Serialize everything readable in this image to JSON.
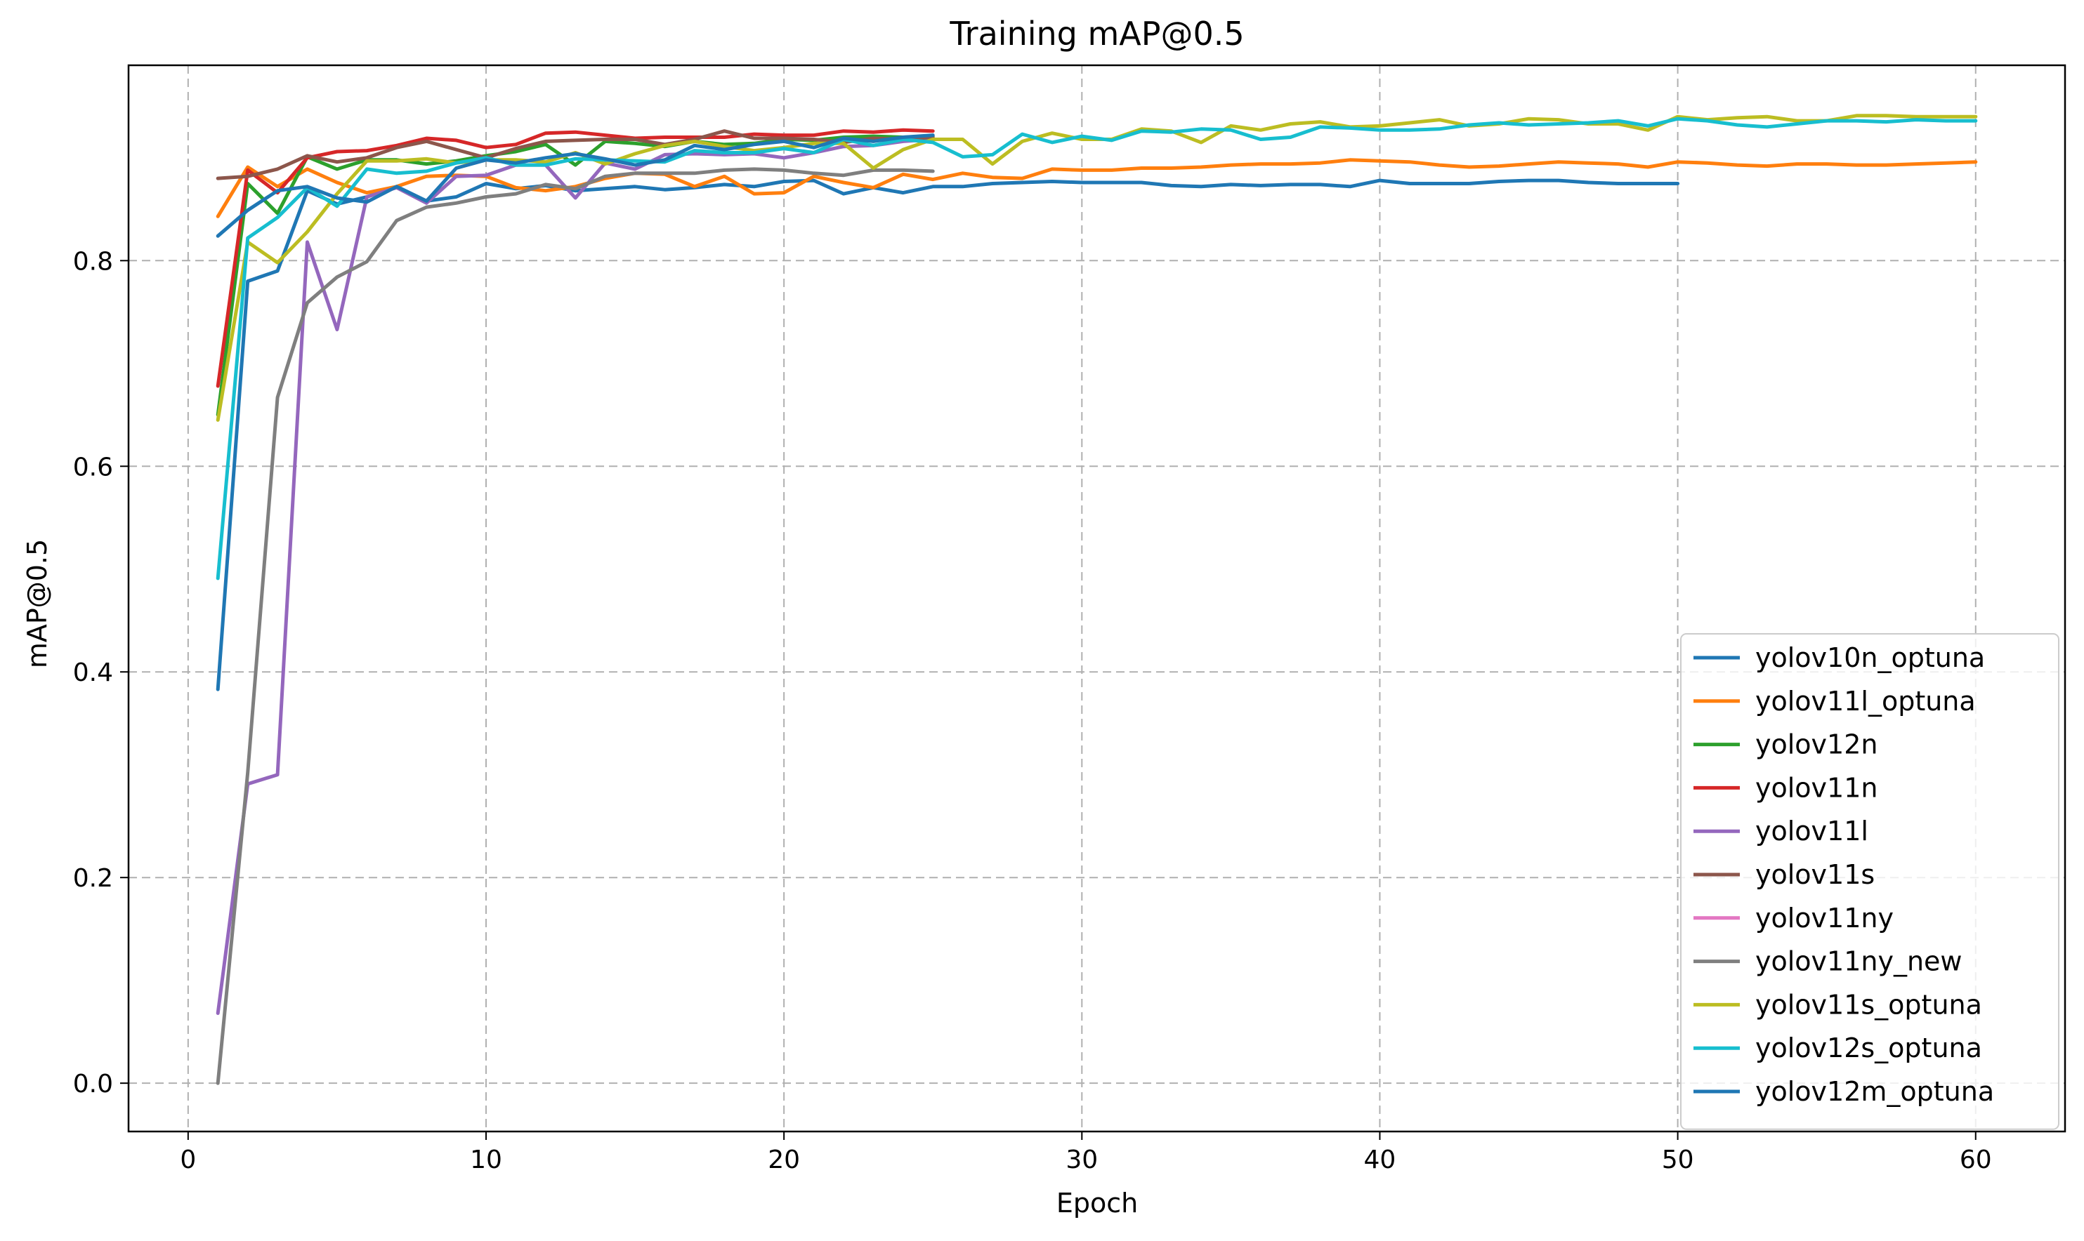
{
  "chart_data": {
    "type": "line",
    "title": "Training mAP@0.5",
    "xlabel": "Epoch",
    "ylabel": "mAP@0.5",
    "xlim": [
      -2,
      63
    ],
    "ylim": [
      -0.047,
      0.99
    ],
    "xticks": [
      0,
      10,
      20,
      30,
      40,
      50,
      60
    ],
    "yticks": [
      0.0,
      0.2,
      0.4,
      0.6,
      0.8
    ],
    "ytick_labels": [
      "0.0",
      "0.2",
      "0.4",
      "0.6",
      "0.8"
    ],
    "grid": true,
    "legend_position": "lower-right",
    "series": [
      {
        "name": "yolov10n_optuna",
        "color": "#1f77b4",
        "x_start": 1,
        "values": [
          0.383,
          0.78,
          0.79,
          0.868,
          0.855,
          0.862,
          0.872,
          0.858,
          0.862,
          0.875,
          0.87,
          0.873,
          0.868,
          0.87,
          0.872,
          0.869,
          0.871,
          0.874,
          0.872,
          0.877,
          0.878,
          0.865,
          0.871,
          0.866,
          0.872,
          0.872,
          0.875,
          0.876,
          0.877,
          0.876,
          0.876,
          0.876,
          0.873,
          0.872,
          0.874,
          0.873,
          0.874,
          0.874,
          0.872,
          0.878,
          0.875,
          0.875,
          0.875,
          0.877,
          0.878,
          0.878,
          0.876,
          0.875,
          0.875,
          0.875
        ]
      },
      {
        "name": "yolov11l_optuna",
        "color": "#ff7f0e",
        "x_start": 1,
        "values": [
          0.843,
          0.891,
          0.872,
          0.889,
          0.876,
          0.866,
          0.872,
          0.882,
          0.883,
          0.882,
          0.871,
          0.868,
          0.872,
          0.88,
          0.885,
          0.884,
          0.872,
          0.882,
          0.865,
          0.866,
          0.882,
          0.876,
          0.871,
          0.884,
          0.879,
          0.885,
          0.881,
          0.88,
          0.889,
          0.888,
          0.888,
          0.89,
          0.89,
          0.891,
          0.893,
          0.894,
          0.894,
          0.895,
          0.898,
          0.897,
          0.896,
          0.893,
          0.891,
          0.892,
          0.894,
          0.896,
          0.895,
          0.894,
          0.891,
          0.896,
          0.895,
          0.893,
          0.892,
          0.894,
          0.894,
          0.893,
          0.893,
          0.894,
          0.895,
          0.896
        ]
      },
      {
        "name": "yolov12n",
        "color": "#2ca02c",
        "x_start": 1,
        "values": [
          0.65,
          0.875,
          0.846,
          0.901,
          0.889,
          0.898,
          0.898,
          0.894,
          0.897,
          0.902,
          0.906,
          0.913,
          0.893,
          0.916,
          0.914,
          0.911,
          0.916,
          0.913,
          0.914,
          0.918,
          0.917,
          0.92,
          0.921,
          0.92,
          0.921
        ]
      },
      {
        "name": "yolov11n",
        "color": "#d62728",
        "x_start": 1,
        "values": [
          0.678,
          0.888,
          0.866,
          0.9,
          0.906,
          0.907,
          0.912,
          0.919,
          0.917,
          0.91,
          0.913,
          0.924,
          0.925,
          0.922,
          0.919,
          0.92,
          0.92,
          0.92,
          0.923,
          0.922,
          0.922,
          0.926,
          0.925,
          0.927,
          0.926
        ]
      },
      {
        "name": "yolov11l",
        "color": "#9467bd",
        "x_start": 1,
        "values": [
          0.068,
          0.291,
          0.3,
          0.818,
          0.733,
          0.862,
          0.871,
          0.856,
          0.882,
          0.883,
          0.893,
          0.893,
          0.861,
          0.895,
          0.889,
          0.903,
          0.904,
          0.903,
          0.904,
          0.9,
          0.905,
          0.911,
          0.912,
          0.916,
          0.918
        ]
      },
      {
        "name": "yolov11s",
        "color": "#8c564b",
        "x_start": 1,
        "values": [
          0.88,
          0.882,
          0.889,
          0.902,
          0.896,
          0.9,
          0.91,
          0.916,
          0.908,
          0.9,
          0.909,
          0.916,
          0.917,
          0.918,
          0.918,
          0.913,
          0.918,
          0.926,
          0.919,
          0.919,
          0.918,
          0.915,
          0.919,
          0.918,
          0.92
        ]
      },
      {
        "name": "yolov11ny",
        "color": "#e377c2",
        "x_start": 1,
        "values": []
      },
      {
        "name": "yolov11ny_new",
        "color": "#7f7f7f",
        "x_start": 1,
        "values": [
          0.0,
          0.302,
          0.667,
          0.759,
          0.784,
          0.799,
          0.839,
          0.852,
          0.856,
          0.862,
          0.865,
          0.874,
          0.87,
          0.882,
          0.885,
          0.885,
          0.885,
          0.888,
          0.889,
          0.888,
          0.885,
          0.883,
          0.888,
          0.888,
          0.887
        ]
      },
      {
        "name": "yolov11s_optuna",
        "color": "#bcbd22",
        "x_start": 1,
        "values": [
          0.645,
          0.818,
          0.798,
          0.828,
          0.865,
          0.897,
          0.897,
          0.899,
          0.895,
          0.898,
          0.898,
          0.896,
          0.905,
          0.894,
          0.904,
          0.912,
          0.916,
          0.911,
          0.907,
          0.91,
          0.914,
          0.914,
          0.89,
          0.908,
          0.918,
          0.918,
          0.894,
          0.916,
          0.924,
          0.918,
          0.918,
          0.928,
          0.926,
          0.915,
          0.931,
          0.927,
          0.933,
          0.935,
          0.93,
          0.931,
          0.934,
          0.937,
          0.931,
          0.933,
          0.938,
          0.937,
          0.933,
          0.933,
          0.927,
          0.94,
          0.937,
          0.939,
          0.94,
          0.936,
          0.936,
          0.941,
          0.941,
          0.94,
          0.94,
          0.94
        ]
      },
      {
        "name": "yolov12s_optuna",
        "color": "#17becf",
        "x_start": 1,
        "values": [
          0.491,
          0.822,
          0.842,
          0.871,
          0.853,
          0.889,
          0.885,
          0.887,
          0.895,
          0.9,
          0.893,
          0.893,
          0.899,
          0.898,
          0.897,
          0.896,
          0.907,
          0.905,
          0.905,
          0.909,
          0.905,
          0.918,
          0.912,
          0.918,
          0.915,
          0.901,
          0.903,
          0.923,
          0.915,
          0.921,
          0.917,
          0.926,
          0.925,
          0.928,
          0.927,
          0.918,
          0.92,
          0.93,
          0.929,
          0.927,
          0.927,
          0.928,
          0.932,
          0.934,
          0.932,
          0.933,
          0.934,
          0.936,
          0.931,
          0.938,
          0.936,
          0.932,
          0.93,
          0.933,
          0.936,
          0.936,
          0.935,
          0.937,
          0.936,
          0.936
        ]
      },
      {
        "name": "yolov12m_optuna",
        "color": "#1f77b4",
        "x_start": 1,
        "values": [
          0.824,
          0.849,
          0.868,
          0.872,
          0.861,
          0.857,
          0.872,
          0.858,
          0.89,
          0.898,
          0.895,
          0.9,
          0.904,
          0.899,
          0.893,
          0.898,
          0.912,
          0.908,
          0.913,
          0.916,
          0.91,
          0.919,
          0.916,
          0.92,
          0.922
        ]
      }
    ]
  }
}
